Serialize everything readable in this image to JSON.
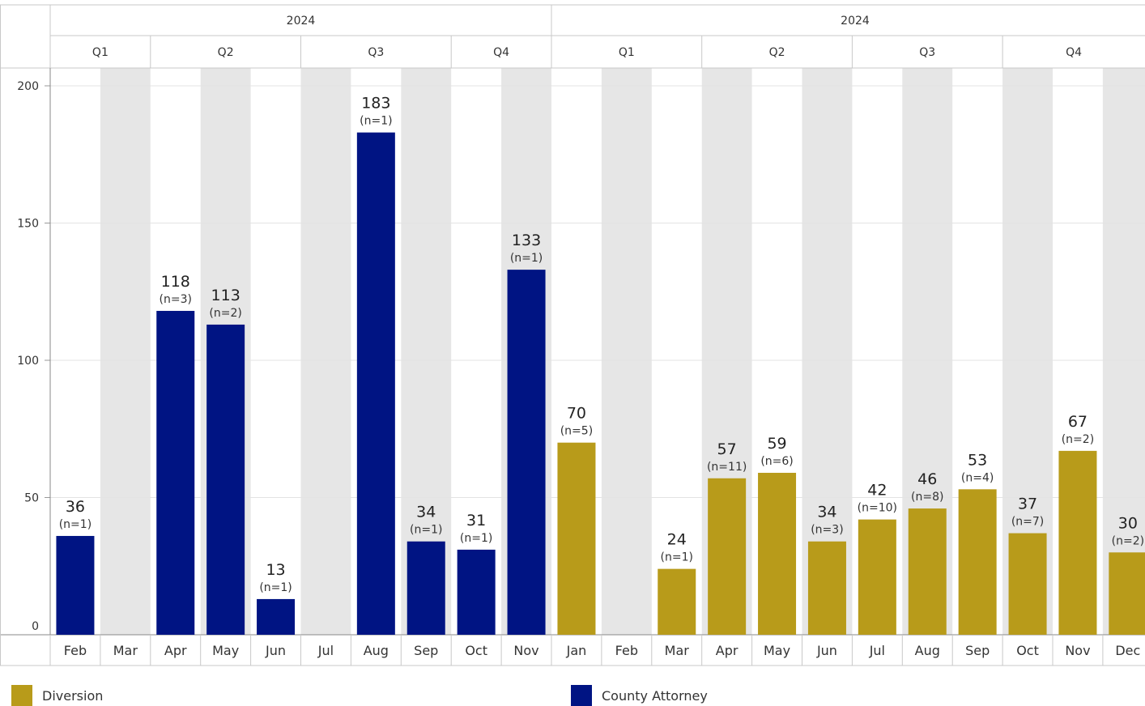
{
  "chart_data": {
    "type": "bar",
    "yaxis": {
      "ticks": [
        0,
        50,
        100,
        150,
        200
      ],
      "ylim": [
        0,
        200
      ]
    },
    "groups": [
      {
        "year": "2024",
        "series": "County Attorney",
        "quarters": [
          {
            "label": "Q1",
            "months": [
              {
                "month": "Feb",
                "value": 36,
                "n": "(n=1)"
              },
              {
                "month": "Mar",
                "value": null,
                "n": ""
              }
            ]
          },
          {
            "label": "Q2",
            "months": [
              {
                "month": "Apr",
                "value": 118,
                "n": "(n=3)"
              },
              {
                "month": "May",
                "value": 113,
                "n": "(n=2)"
              },
              {
                "month": "Jun",
                "value": 13,
                "n": "(n=1)"
              }
            ]
          },
          {
            "label": "Q3",
            "months": [
              {
                "month": "Jul",
                "value": null,
                "n": ""
              },
              {
                "month": "Aug",
                "value": 183,
                "n": "(n=1)"
              },
              {
                "month": "Sep",
                "value": 34,
                "n": "(n=1)"
              }
            ]
          },
          {
            "label": "Q4",
            "months": [
              {
                "month": "Oct",
                "value": 31,
                "n": "(n=1)"
              },
              {
                "month": "Nov",
                "value": 133,
                "n": "(n=1)"
              }
            ]
          }
        ]
      },
      {
        "year": "2024",
        "series": "Diversion",
        "quarters": [
          {
            "label": "Q1",
            "months": [
              {
                "month": "Jan",
                "value": 70,
                "n": "(n=5)"
              },
              {
                "month": "Feb",
                "value": null,
                "n": ""
              },
              {
                "month": "Mar",
                "value": 24,
                "n": "(n=1)"
              }
            ]
          },
          {
            "label": "Q2",
            "months": [
              {
                "month": "Apr",
                "value": 57,
                "n": "(n=11)"
              },
              {
                "month": "May",
                "value": 59,
                "n": "(n=6)"
              },
              {
                "month": "Jun",
                "value": 34,
                "n": "(n=3)"
              }
            ]
          },
          {
            "label": "Q3",
            "months": [
              {
                "month": "Jul",
                "value": 42,
                "n": "(n=10)"
              },
              {
                "month": "Aug",
                "value": 46,
                "n": "(n=8)"
              },
              {
                "month": "Sep",
                "value": 53,
                "n": "(n=4)"
              }
            ]
          },
          {
            "label": "Q4",
            "months": [
              {
                "month": "Oct",
                "value": 37,
                "n": "(n=7)"
              },
              {
                "month": "Nov",
                "value": 67,
                "n": "(n=2)"
              },
              {
                "month": "Dec",
                "value": 30,
                "n": "(n=2)"
              }
            ]
          }
        ]
      }
    ],
    "legend": {
      "placement": "bottom",
      "items": [
        {
          "name": "Diversion",
          "color": "#b89b1a"
        },
        {
          "name": "County Attorney",
          "color": "#001483"
        }
      ]
    },
    "colors": {
      "County Attorney": "#001483",
      "Diversion": "#b89b1a",
      "band": "#e6e6e6",
      "grid": "#e3e3e3",
      "border": "#c8c8c8"
    },
    "grid": true
  }
}
